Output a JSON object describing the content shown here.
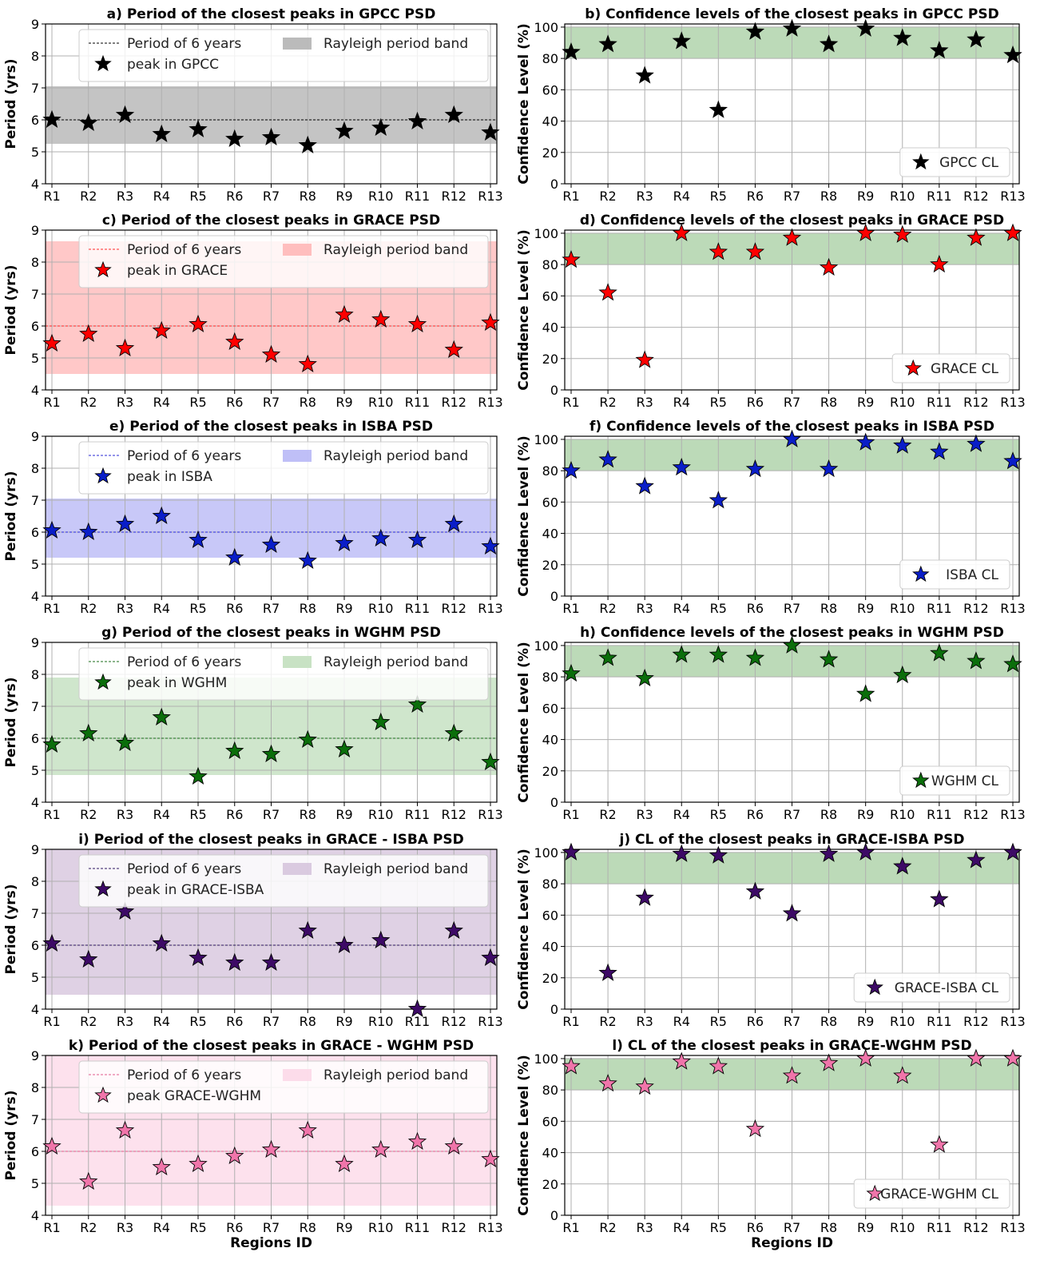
{
  "figure": {
    "regions_label": "Regions ID",
    "categories": [
      "R1",
      "R2",
      "R3",
      "R4",
      "R5",
      "R6",
      "R7",
      "R8",
      "R9",
      "R10",
      "R11",
      "R12",
      "R13"
    ],
    "period_ylabel": "Period (yrs)",
    "cl_ylabel": "Confidence Level (%)"
  },
  "chart_data": [
    {
      "type": "scatter",
      "id": "a",
      "panel": "period",
      "title": "a) Period of the closest peaks in GPCC PSD",
      "ylabel": "Period (yrs)",
      "xlabel": "",
      "ylim": [
        4,
        9
      ],
      "yticks": [
        4,
        5,
        6,
        7,
        8,
        9
      ],
      "grid": true,
      "legend_position": "top",
      "reference_line": {
        "value": 6,
        "label": "Period of 6 years",
        "color": "#000000"
      },
      "band": {
        "range": [
          5.25,
          7.05
        ],
        "label": "Rayleigh period band",
        "color": "#b4b4b4"
      },
      "series": [
        {
          "name": "peak in GPCC",
          "color": "#000000",
          "values": [
            6.0,
            5.9,
            6.15,
            5.55,
            5.7,
            5.4,
            5.45,
            5.2,
            5.65,
            5.75,
            5.95,
            6.15,
            5.6
          ]
        }
      ]
    },
    {
      "type": "scatter",
      "id": "b",
      "panel": "cl",
      "title": "b) Confidence levels of the closest peaks in GPCC PSD",
      "ylabel": "Confidence Level (%)",
      "xlabel": "",
      "ylim": [
        0,
        102
      ],
      "yticks": [
        0,
        20,
        40,
        60,
        80,
        100
      ],
      "grid": true,
      "legend_position": "bottom-right",
      "band": {
        "range": [
          80,
          100
        ],
        "color": "#a9cfa4"
      },
      "series": [
        {
          "name": "GPCC CL",
          "color": "#000000",
          "values": [
            84,
            89,
            69,
            91,
            47,
            97,
            99,
            89,
            99,
            93,
            85,
            92,
            82
          ]
        }
      ]
    },
    {
      "type": "scatter",
      "id": "c",
      "panel": "period",
      "title": "c) Period of the closest peaks in GRACE PSD",
      "ylabel": "Period (yrs)",
      "xlabel": "",
      "ylim": [
        4,
        9
      ],
      "yticks": [
        4,
        5,
        6,
        7,
        8,
        9
      ],
      "grid": true,
      "legend_position": "top",
      "reference_line": {
        "value": 6,
        "label": "Period of 6 years",
        "color": "#ff2a2a"
      },
      "band": {
        "range": [
          4.5,
          8.65
        ],
        "label": "Rayleigh period band",
        "color": "#ffb8b8"
      },
      "series": [
        {
          "name": "peak in GRACE",
          "color": "#ff0000",
          "values": [
            5.45,
            5.75,
            5.3,
            5.85,
            6.05,
            5.5,
            5.1,
            4.8,
            6.35,
            6.2,
            6.05,
            5.25,
            6.1
          ]
        }
      ]
    },
    {
      "type": "scatter",
      "id": "d",
      "panel": "cl",
      "title": "d) Confidence levels of the closest peaks in GRACE PSD",
      "ylabel": "Confidence Level (%)",
      "xlabel": "",
      "ylim": [
        0,
        102
      ],
      "yticks": [
        0,
        20,
        40,
        60,
        80,
        100
      ],
      "grid": true,
      "legend_position": "bottom-right",
      "band": {
        "range": [
          80,
          100
        ],
        "color": "#a9cfa4"
      },
      "series": [
        {
          "name": "GRACE CL",
          "color": "#ff0000",
          "values": [
            83,
            62,
            19,
            100,
            88,
            88,
            97,
            78,
            100,
            99,
            80,
            97,
            100
          ]
        }
      ]
    },
    {
      "type": "scatter",
      "id": "e",
      "panel": "period",
      "title": "e) Period of the closest peaks in ISBA PSD",
      "ylabel": "Period (yrs)",
      "xlabel": "",
      "ylim": [
        4,
        9
      ],
      "yticks": [
        4,
        5,
        6,
        7,
        8,
        9
      ],
      "grid": true,
      "legend_position": "top",
      "reference_line": {
        "value": 6,
        "label": "Period of 6 years",
        "color": "#2a2ad4"
      },
      "band": {
        "range": [
          5.2,
          7.05
        ],
        "label": "Rayleigh period band",
        "color": "#b8b8f6"
      },
      "series": [
        {
          "name": "peak in ISBA",
          "color": "#0a1ec8",
          "values": [
            6.05,
            6.0,
            6.25,
            6.5,
            5.75,
            5.2,
            5.6,
            5.1,
            5.65,
            5.8,
            5.75,
            6.25,
            5.55
          ]
        }
      ]
    },
    {
      "type": "scatter",
      "id": "f",
      "panel": "cl",
      "title": "f) Confidence levels of the closest peaks in ISBA PSD",
      "ylabel": "Confidence Level (%)",
      "xlabel": "",
      "ylim": [
        0,
        102
      ],
      "yticks": [
        0,
        20,
        40,
        60,
        80,
        100
      ],
      "grid": true,
      "legend_position": "bottom-right",
      "band": {
        "range": [
          80,
          100
        ],
        "color": "#a9cfa4"
      },
      "series": [
        {
          "name": "ISBA CL",
          "color": "#0a1ec8",
          "values": [
            80,
            87,
            70,
            82,
            61,
            81,
            100,
            81,
            98,
            96,
            92,
            97,
            86
          ]
        }
      ]
    },
    {
      "type": "scatter",
      "id": "g",
      "panel": "period",
      "title": "g) Period of the closest peaks in WGHM PSD",
      "ylabel": "Period (yrs)",
      "xlabel": "",
      "ylim": [
        4,
        9
      ],
      "yticks": [
        4,
        5,
        6,
        7,
        8,
        9
      ],
      "grid": true,
      "legend_position": "top",
      "reference_line": {
        "value": 6,
        "label": "Period of 6 years",
        "color": "#1a6e1a"
      },
      "band": {
        "range": [
          4.85,
          7.9
        ],
        "label": "Rayleigh period band",
        "color": "#c2dfbe"
      },
      "series": [
        {
          "name": "peak in WGHM",
          "color": "#0b6e0b",
          "values": [
            5.8,
            6.15,
            5.85,
            6.65,
            4.8,
            5.6,
            5.5,
            5.95,
            5.65,
            6.5,
            7.05,
            6.15,
            5.25
          ]
        }
      ]
    },
    {
      "type": "scatter",
      "id": "h",
      "panel": "cl",
      "title": "h) Confidence levels of the closest peaks in WGHM PSD",
      "ylabel": "Confidence Level (%)",
      "xlabel": "",
      "ylim": [
        0,
        102
      ],
      "yticks": [
        0,
        20,
        40,
        60,
        80,
        100
      ],
      "grid": true,
      "legend_position": "bottom-right",
      "band": {
        "range": [
          80,
          100
        ],
        "color": "#a9cfa4"
      },
      "series": [
        {
          "name": "WGHM CL",
          "color": "#0b6e0b",
          "values": [
            82,
            92,
            79,
            94,
            94,
            92,
            100,
            91,
            69,
            81,
            95,
            90,
            88
          ]
        }
      ]
    },
    {
      "type": "scatter",
      "id": "i",
      "panel": "period",
      "title": "i) Period of the closest peaks in GRACE - ISBA PSD",
      "ylabel": "Period (yrs)",
      "xlabel": "",
      "ylim": [
        4,
        9
      ],
      "yticks": [
        4,
        5,
        6,
        7,
        8,
        9
      ],
      "grid": true,
      "legend_position": "top",
      "reference_line": {
        "value": 6,
        "label": "Period of 6 years",
        "color": "#2d1660"
      },
      "band": {
        "range": [
          4.45,
          9.0
        ],
        "label": "Rayleigh period band",
        "color": "#d6c4dd"
      },
      "series": [
        {
          "name": "peak in GRACE-ISBA",
          "color": "#3d0a66",
          "values": [
            6.05,
            5.55,
            7.05,
            6.05,
            5.6,
            5.45,
            5.45,
            6.45,
            6.0,
            6.15,
            4.0,
            6.45,
            5.6
          ]
        }
      ]
    },
    {
      "type": "scatter",
      "id": "j",
      "panel": "cl",
      "title": "j) CL of the closest peaks in GRACE-ISBA PSD",
      "ylabel": "Confidence Level (%)",
      "xlabel": "",
      "ylim": [
        0,
        102
      ],
      "yticks": [
        0,
        20,
        40,
        60,
        80,
        100
      ],
      "grid": true,
      "legend_position": "bottom-right",
      "band": {
        "range": [
          80,
          100
        ],
        "color": "#a9cfa4"
      },
      "series": [
        {
          "name": "GRACE-ISBA CL",
          "color": "#3d0a66",
          "values": [
            100,
            23,
            71,
            99,
            98,
            75,
            61,
            99,
            100,
            91,
            70,
            95,
            100
          ]
        }
      ]
    },
    {
      "type": "scatter",
      "id": "k",
      "panel": "period",
      "title": "k) Period of the closest peaks in GRACE - WGHM PSD",
      "ylabel": "Period (yrs)",
      "xlabel": "Regions ID",
      "ylim": [
        4,
        9
      ],
      "yticks": [
        4,
        5,
        6,
        7,
        8,
        9
      ],
      "grid": true,
      "legend_position": "top",
      "reference_line": {
        "value": 6,
        "label": "Period of 6 years",
        "color": "#e05a8c"
      },
      "band": {
        "range": [
          4.3,
          9.0
        ],
        "label": "Rayleigh period band",
        "color": "#fcd8e8"
      },
      "series": [
        {
          "name": "peak GRACE-WGHM",
          "color": "#f075aa",
          "values": [
            6.15,
            5.05,
            6.65,
            5.5,
            5.6,
            5.85,
            6.05,
            6.65,
            5.6,
            6.05,
            6.3,
            6.15,
            5.75
          ]
        }
      ]
    },
    {
      "type": "scatter",
      "id": "l",
      "panel": "cl",
      "title": "l) CL of the closest peaks in GRACE-WGHM PSD",
      "ylabel": "Confidence Level (%)",
      "xlabel": "Regions ID",
      "ylim": [
        0,
        102
      ],
      "yticks": [
        0,
        20,
        40,
        60,
        80,
        100
      ],
      "grid": true,
      "legend_position": "bottom-right",
      "band": {
        "range": [
          80,
          100
        ],
        "color": "#a9cfa4"
      },
      "series": [
        {
          "name": "GRACE-WGHM CL",
          "color": "#f075aa",
          "values": [
            95,
            84,
            82,
            98,
            95,
            55,
            89,
            97,
            100,
            89,
            45,
            100,
            100
          ]
        }
      ]
    }
  ]
}
